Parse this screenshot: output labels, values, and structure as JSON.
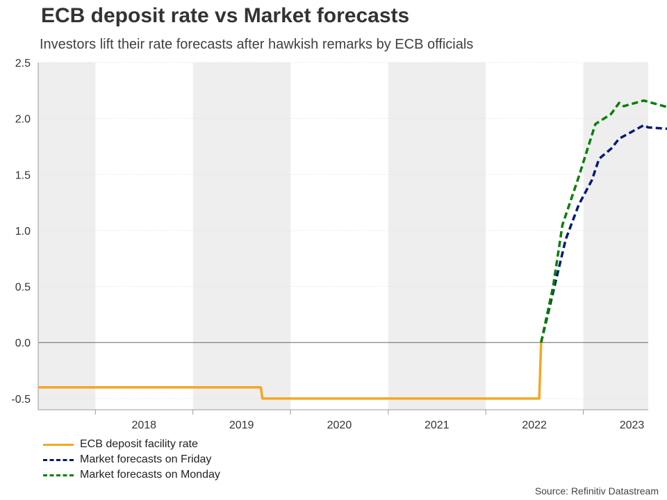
{
  "header": {
    "title": "ECB deposit rate vs Market forecasts",
    "subtitle": "Investors lift their rate forecasts after hawkish remarks by ECB officials"
  },
  "source": "Source: Refinitiv Datastream",
  "colors": {
    "ecb_rate": "#f5a623",
    "friday": "#001a70",
    "monday": "#008000",
    "band": "#eeeeee",
    "zero_line": "#666666",
    "grid": "#dddddd"
  },
  "chart_data": {
    "type": "line",
    "title": "ECB deposit rate vs Market forecasts",
    "subtitle": "Investors lift their rate forecasts after hawkish remarks by ECB officials",
    "xlabel": "",
    "ylabel": "",
    "x_range": [
      "2017-06-01",
      "2023-09-01"
    ],
    "ylim": [
      -0.6,
      2.5
    ],
    "y_ticks": [
      -0.5,
      0.0,
      0.5,
      1.0,
      1.5,
      2.0,
      2.5
    ],
    "y_tick_labels": [
      "-0.5",
      "0.0",
      "0.5",
      "1.0",
      "1.5",
      "2.0",
      "2.5"
    ],
    "x_tick_labels": [
      "2018",
      "2019",
      "2020",
      "2021",
      "2022",
      "2023"
    ],
    "shaded_year_bands": [
      [
        "2017-06-01",
        "2018-01-01"
      ],
      [
        "2019-01-01",
        "2020-01-01"
      ],
      [
        "2021-01-01",
        "2022-01-01"
      ],
      [
        "2023-01-01",
        "2024-01-01"
      ]
    ],
    "grid": "horizontal dotted",
    "legend_position": "bottom-left",
    "series": [
      {
        "name": "ECB deposit facility rate",
        "color": "#f5a623",
        "dash": "solid",
        "points": [
          [
            "2017-06-01",
            -0.4
          ],
          [
            "2019-09-12",
            -0.4
          ],
          [
            "2019-09-18",
            -0.5
          ],
          [
            "2022-07-20",
            -0.5
          ],
          [
            "2022-07-27",
            0.0
          ]
        ]
      },
      {
        "name": "Market forecasts on Friday",
        "color": "#001a70",
        "dash": "dashed",
        "points": [
          [
            "2022-07-27",
            0.0
          ],
          [
            "2022-09-10",
            0.45
          ],
          [
            "2022-10-27",
            0.92
          ],
          [
            "2022-12-15",
            1.23
          ],
          [
            "2023-02-02",
            1.45
          ],
          [
            "2023-03-01",
            1.64
          ],
          [
            "2023-04-15",
            1.73
          ],
          [
            "2023-05-15",
            1.82
          ],
          [
            "2023-06-15",
            1.86
          ],
          [
            "2023-08-15",
            1.94
          ],
          [
            "2023-09-01",
            1.92
          ],
          [
            "2023-12-31",
            1.9
          ]
        ]
      },
      {
        "name": "Market forecasts on Monday",
        "color": "#008000",
        "dash": "dashed",
        "points": [
          [
            "2022-07-27",
            0.0
          ],
          [
            "2022-09-10",
            0.5
          ],
          [
            "2022-10-15",
            1.05
          ],
          [
            "2022-12-15",
            1.48
          ],
          [
            "2023-02-15",
            1.95
          ],
          [
            "2023-04-15",
            2.04
          ],
          [
            "2023-05-15",
            2.14
          ],
          [
            "2023-06-01",
            2.11
          ],
          [
            "2023-08-15",
            2.16
          ],
          [
            "2023-10-15",
            2.12
          ],
          [
            "2023-12-31",
            2.07
          ]
        ]
      }
    ]
  }
}
